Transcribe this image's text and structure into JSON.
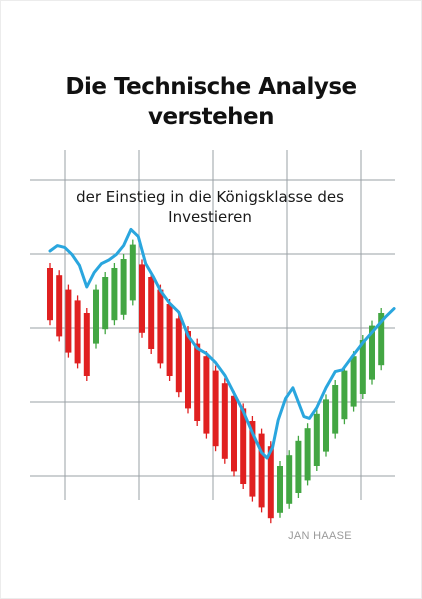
{
  "cover": {
    "title": "Die Technische Analyse verstehen",
    "subtitle": "der Einstieg in die Königsklasse des Investieren",
    "author": "JAN HAASE"
  },
  "colors": {
    "background": "#ffffff",
    "grid": "#9aa0a6",
    "bearish": "#e02020",
    "bullish": "#43a643",
    "trendline": "#2aa6de",
    "text": "#111111",
    "author": "#9a9a9a"
  },
  "chart_data": {
    "type": "candlestick",
    "candles": [
      {
        "dir": "down",
        "open": 180,
        "close": 122
      },
      {
        "dir": "down",
        "open": 172,
        "close": 104
      },
      {
        "dir": "down",
        "open": 156,
        "close": 86
      },
      {
        "dir": "down",
        "open": 144,
        "close": 74
      },
      {
        "dir": "down",
        "open": 130,
        "close": 60
      },
      {
        "dir": "up",
        "open": 96,
        "close": 156
      },
      {
        "dir": "up",
        "open": 112,
        "close": 170
      },
      {
        "dir": "up",
        "open": 122,
        "close": 180
      },
      {
        "dir": "up",
        "open": 128,
        "close": 190
      },
      {
        "dir": "up",
        "open": 144,
        "close": 206
      },
      {
        "dir": "down",
        "open": 184,
        "close": 108
      },
      {
        "dir": "down",
        "open": 170,
        "close": 90
      },
      {
        "dir": "down",
        "open": 156,
        "close": 74
      },
      {
        "dir": "down",
        "open": 140,
        "close": 60
      },
      {
        "dir": "down",
        "open": 124,
        "close": 42
      },
      {
        "dir": "down",
        "open": 110,
        "close": 24
      },
      {
        "dir": "down",
        "open": 96,
        "close": 10
      },
      {
        "dir": "down",
        "open": 82,
        "close": -4
      },
      {
        "dir": "down",
        "open": 66,
        "close": -18
      },
      {
        "dir": "down",
        "open": 52,
        "close": -32
      },
      {
        "dir": "down",
        "open": 38,
        "close": -46
      },
      {
        "dir": "down",
        "open": 24,
        "close": -60
      },
      {
        "dir": "down",
        "open": 10,
        "close": -74
      },
      {
        "dir": "down",
        "open": -4,
        "close": -86
      },
      {
        "dir": "down",
        "open": -18,
        "close": -98
      },
      {
        "dir": "up",
        "open": -92,
        "close": -40
      },
      {
        "dir": "up",
        "open": -82,
        "close": -28
      },
      {
        "dir": "up",
        "open": -70,
        "close": -12
      },
      {
        "dir": "up",
        "open": -56,
        "close": 2
      },
      {
        "dir": "up",
        "open": -40,
        "close": 18
      },
      {
        "dir": "up",
        "open": -24,
        "close": 34
      },
      {
        "dir": "up",
        "open": -4,
        "close": 50
      },
      {
        "dir": "up",
        "open": 12,
        "close": 66
      },
      {
        "dir": "up",
        "open": 26,
        "close": 82
      },
      {
        "dir": "up",
        "open": 40,
        "close": 100
      },
      {
        "dir": "up",
        "open": 56,
        "close": 116
      },
      {
        "dir": "up",
        "open": 72,
        "close": 130
      }
    ],
    "trendline": [
      [
        0,
        190
      ],
      [
        0.8,
        196
      ],
      [
        1.6,
        194
      ],
      [
        2.4,
        186
      ],
      [
        3.2,
        174
      ],
      [
        4.0,
        150
      ],
      [
        4.8,
        166
      ],
      [
        5.6,
        176
      ],
      [
        6.4,
        180
      ],
      [
        7.2,
        186
      ],
      [
        8.0,
        196
      ],
      [
        8.8,
        214
      ],
      [
        9.6,
        206
      ],
      [
        10.4,
        176
      ],
      [
        11.2,
        162
      ],
      [
        12.0,
        146
      ],
      [
        13.0,
        132
      ],
      [
        14.0,
        122
      ],
      [
        15.0,
        96
      ],
      [
        16.0,
        82
      ],
      [
        17.0,
        76
      ],
      [
        18.0,
        66
      ],
      [
        19.0,
        52
      ],
      [
        20.0,
        32
      ],
      [
        21.0,
        12
      ],
      [
        22.0,
        -12
      ],
      [
        23.0,
        -34
      ],
      [
        23.6,
        -40
      ],
      [
        24.2,
        -28
      ],
      [
        24.8,
        2
      ],
      [
        25.6,
        26
      ],
      [
        26.4,
        38
      ],
      [
        27.0,
        22
      ],
      [
        27.6,
        6
      ],
      [
        28.2,
        4
      ],
      [
        29.0,
        16
      ],
      [
        30.0,
        38
      ],
      [
        31.0,
        56
      ],
      [
        31.8,
        58
      ],
      [
        32.8,
        72
      ],
      [
        34.0,
        88
      ],
      [
        35.2,
        102
      ],
      [
        36.4,
        116
      ],
      [
        37.4,
        126
      ]
    ]
  }
}
